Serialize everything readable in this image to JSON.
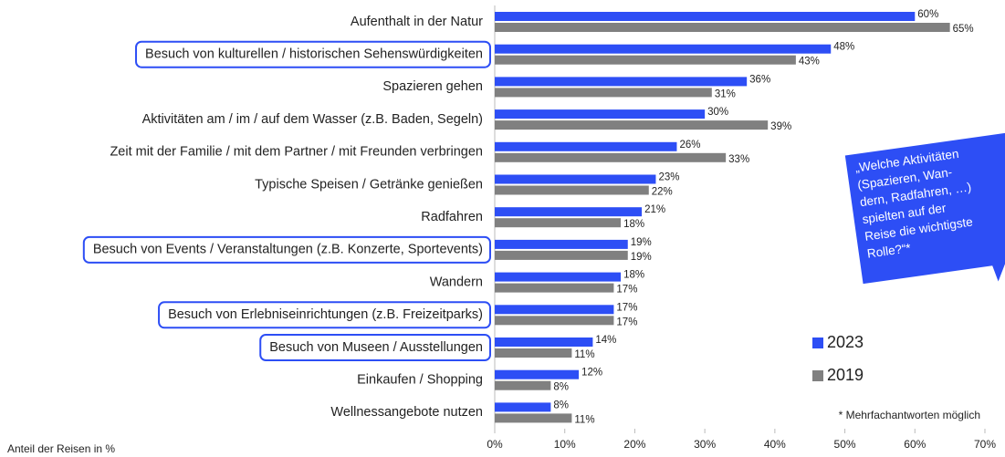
{
  "chart_data": {
    "type": "hbar",
    "categories": [
      "Aufenthalt in der Natur",
      "Besuch von kulturellen / historischen Sehenswürdigkeiten",
      "Spazieren gehen",
      "Aktivitäten am / im / auf dem Wasser (z.B. Baden, Segeln)",
      "Zeit mit der Familie / mit dem Partner / mit Freunden verbringen",
      "Typische Speisen / Getränke genießen",
      "Radfahren",
      "Besuch von Events / Veranstaltungen (z.B. Konzerte, Sportevents)",
      "Wandern",
      "Besuch von Erlebniseinrichtungen (z.B. Freizeitparks)",
      "Besuch von Museen / Ausstellungen",
      "Einkaufen / Shopping",
      "Wellnessangebote nutzen"
    ],
    "highlighted": [
      1,
      7,
      9,
      10
    ],
    "series": [
      {
        "name": "2023",
        "color": "#2d4ef5",
        "values": [
          60,
          48,
          36,
          30,
          26,
          23,
          21,
          19,
          18,
          17,
          14,
          12,
          8
        ],
        "value_labels": [
          "60%",
          "48%",
          "36%",
          "30%",
          "26%",
          "23%",
          "21%",
          "19%",
          "18%",
          "17%",
          "14%",
          "12%",
          "8%"
        ]
      },
      {
        "name": "2019",
        "color": "#808080",
        "values": [
          65,
          43,
          31,
          39,
          33,
          22,
          18,
          19,
          17,
          17,
          11,
          8,
          11
        ],
        "value_labels": [
          "65%",
          "43%",
          "31%",
          "39%",
          "33%",
          "22%",
          "18%",
          "19%",
          "17%",
          "17%",
          "11%",
          "8%",
          "11%"
        ]
      }
    ],
    "xlim": [
      0,
      70
    ],
    "xticks": [
      {
        "value": 0,
        "label": "0%"
      },
      {
        "value": 10,
        "label": "10%"
      },
      {
        "value": 20,
        "label": "20%"
      },
      {
        "value": 30,
        "label": "30%"
      },
      {
        "value": 40,
        "label": "40%"
      },
      {
        "value": 50,
        "label": "50%"
      },
      {
        "value": 60,
        "label": "60%"
      },
      {
        "value": 70,
        "label": "70%"
      }
    ],
    "xlabel": "Anteil der Reisen in %",
    "footnote": "* Mehrfachantworten möglich",
    "annotation": [
      "„Welche Aktivitäten",
      "(Spazieren, Wan-",
      "dern, Radfahren, …)",
      "spielten auf der",
      "Reise die wichtigste",
      "Rolle?“*"
    ]
  }
}
